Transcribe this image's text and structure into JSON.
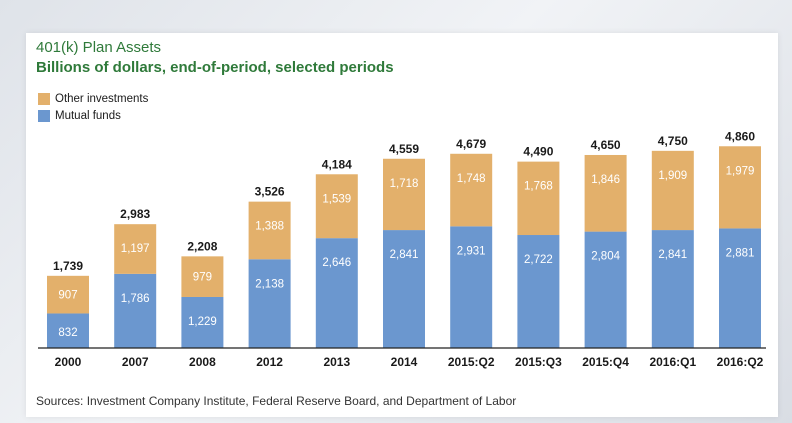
{
  "colors": {
    "mutual_funds": "#6b97cf",
    "other_investments": "#e3b06b",
    "title": "#2f7a3a"
  },
  "chart_data": {
    "type": "bar",
    "stacked": true,
    "title": "401(k) Plan Assets",
    "subtitle": "Billions of dollars, end-of-period, selected periods",
    "categories": [
      "2000",
      "2007",
      "2008",
      "2012",
      "2013",
      "2014",
      "2015:Q2",
      "2015:Q3",
      "2015:Q4",
      "2016:Q1",
      "2016:Q2"
    ],
    "series": [
      {
        "name": "Mutual funds",
        "color": "#6b97cf",
        "values": [
          832,
          1786,
          1229,
          2138,
          2646,
          2841,
          2931,
          2722,
          2804,
          2841,
          2881
        ]
      },
      {
        "name": "Other investments",
        "color": "#e3b06b",
        "values": [
          907,
          1197,
          979,
          1388,
          1539,
          1718,
          1748,
          1768,
          1846,
          1909,
          1979
        ]
      }
    ],
    "segment_labels": {
      "Mutual funds": [
        "832",
        "1,786",
        "1,229",
        "2,138",
        "2,646",
        "2,841",
        "2,931",
        "2,722",
        "2,804",
        "2,841",
        "2,881"
      ],
      "Other investments": [
        "907",
        "1,197",
        "979",
        "1,388",
        "1,539",
        "1,718",
        "1,748",
        "1,768",
        "1,846",
        "1,909",
        "1,979"
      ]
    },
    "totals": [
      "1,739",
      "2,983",
      "2,208",
      "3,526",
      "4,184",
      "4,559",
      "4,679",
      "4,490",
      "4,650",
      "4,750",
      "4,860"
    ],
    "legend": [
      "Other investments",
      "Mutual funds"
    ],
    "legend_position": "top-left",
    "ylim": [
      0,
      5300
    ],
    "grid": false,
    "source": "Sources: Investment Company Institute, Federal Reserve Board, and Department of Labor"
  }
}
